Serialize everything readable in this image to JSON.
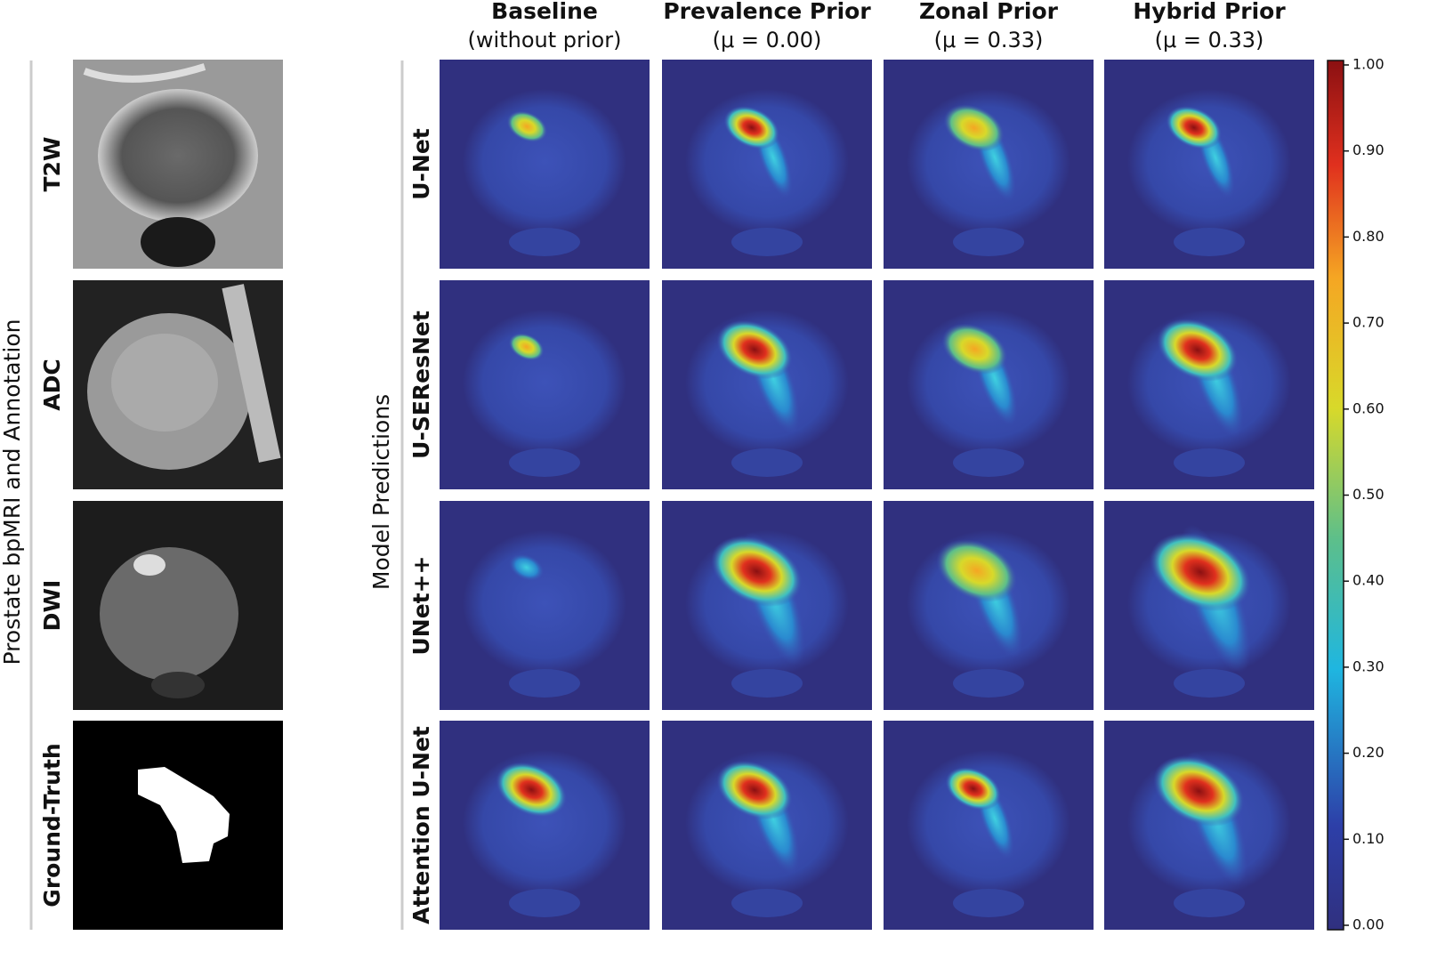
{
  "left_label": "Prostate bpMRI and Annotation",
  "inputs": [
    "T2W",
    "ADC",
    "DWI",
    "Ground-Truth"
  ],
  "middle_label": "Model Predictions",
  "columns": [
    {
      "title": "Baseline",
      "subtitle": "(without prior)"
    },
    {
      "title": "Prevalence Prior",
      "subtitle": "(μ = 0.00)"
    },
    {
      "title": "Zonal Prior",
      "subtitle": "(μ = 0.33)"
    },
    {
      "title": "Hybrid Prior",
      "subtitle": "(μ = 0.33)"
    }
  ],
  "models": [
    "U-Net",
    "U-SEResNet",
    "UNet++",
    "Attention U-Net"
  ],
  "colorbar": {
    "range": [
      0,
      1
    ],
    "ticks": [
      {
        "value": 0,
        "label": "0.00"
      },
      {
        "value": 0.1,
        "label": "0.10"
      },
      {
        "value": 0.2,
        "label": "0.20"
      },
      {
        "value": 0.3,
        "label": "0.30"
      },
      {
        "value": 0.4,
        "label": "0.40"
      },
      {
        "value": 0.5,
        "label": "0.50"
      },
      {
        "value": 0.6,
        "label": "0.60"
      },
      {
        "value": 0.7,
        "label": "0.70"
      },
      {
        "value": 0.8,
        "label": "0.80"
      },
      {
        "value": 0.9,
        "label": "0.90"
      },
      {
        "value": 1,
        "label": "1.00"
      }
    ]
  }
}
